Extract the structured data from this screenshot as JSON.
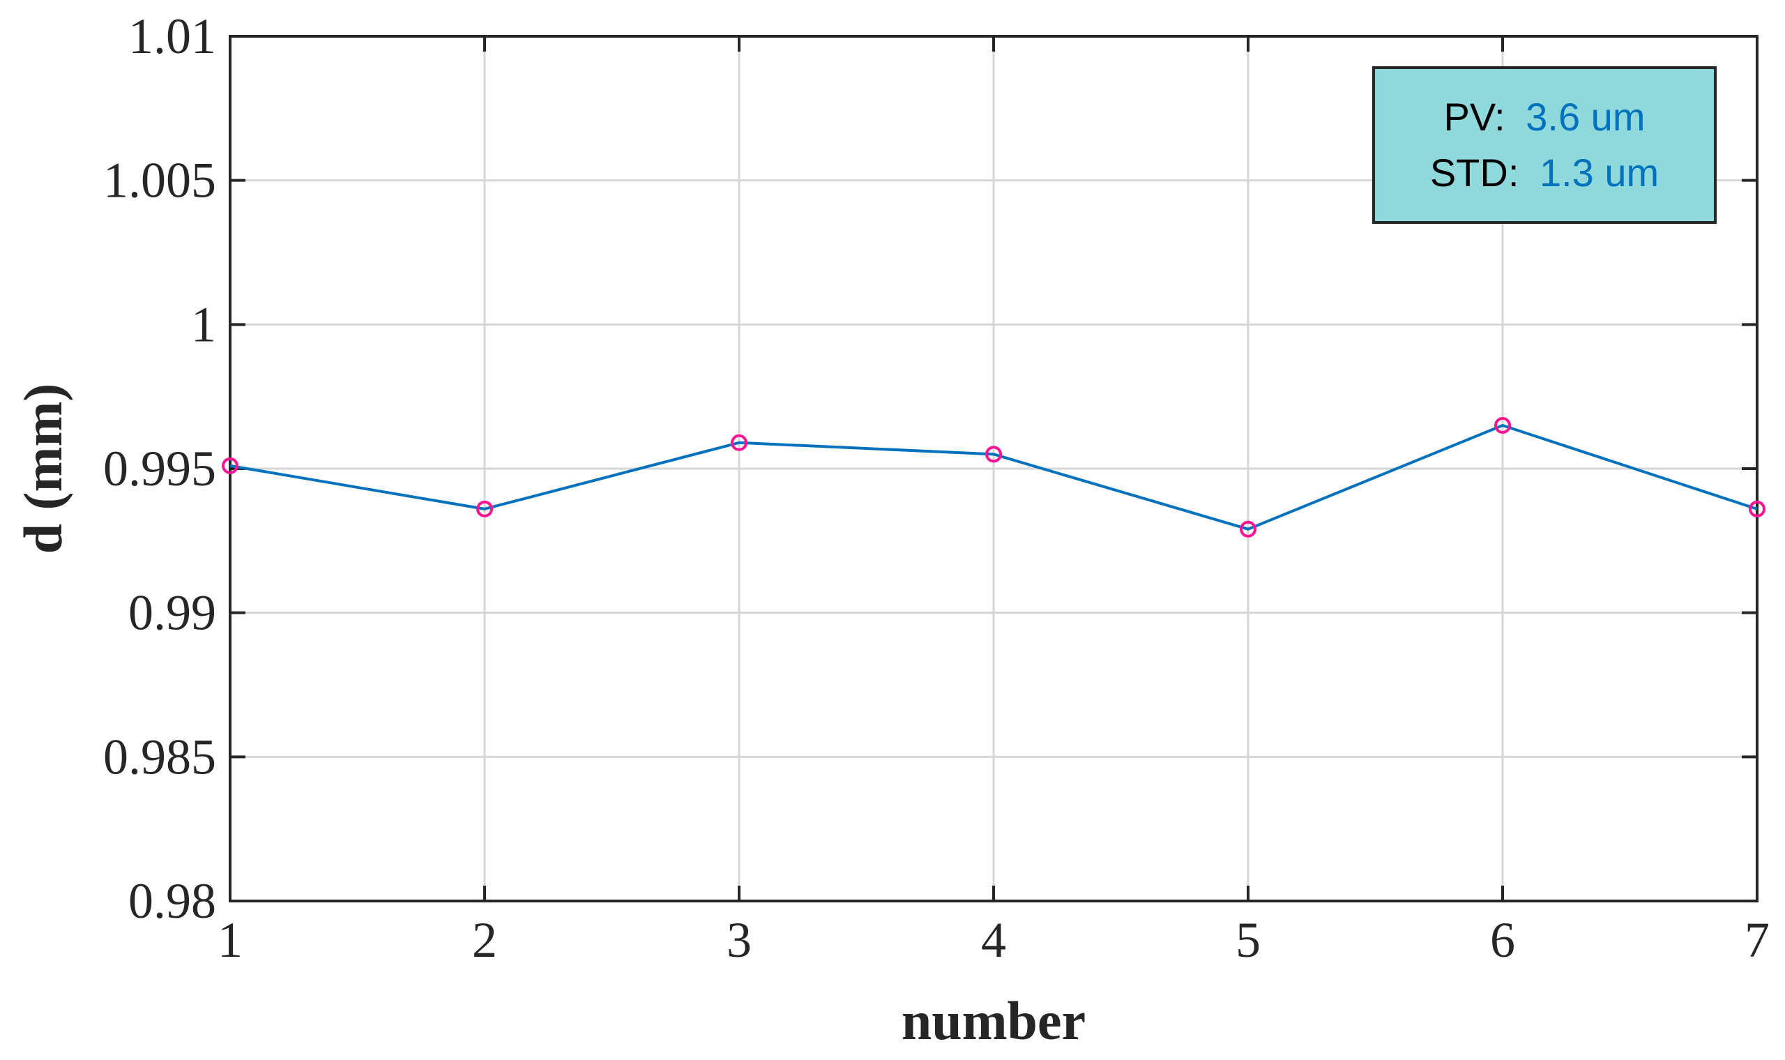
{
  "chart_data": {
    "type": "line",
    "title": "",
    "xlabel": "number",
    "ylabel": "d (mm)",
    "xlim": [
      1,
      7
    ],
    "ylim": [
      0.98,
      1.01
    ],
    "x_ticks": [
      1,
      2,
      3,
      4,
      5,
      6,
      7
    ],
    "x_tick_labels": [
      "1",
      "2",
      "3",
      "4",
      "5",
      "6",
      "7"
    ],
    "y_ticks": [
      0.98,
      0.985,
      0.99,
      0.995,
      1.0,
      1.005,
      1.01
    ],
    "y_tick_labels": [
      "0.98",
      "0.985",
      "0.99",
      "0.995",
      "1",
      "1.005",
      "1.01"
    ],
    "grid": true,
    "legend": "none",
    "series": [
      {
        "x": [
          1,
          2,
          3,
          4,
          5,
          6,
          7
        ],
        "values": [
          0.9951,
          0.9936,
          0.9959,
          0.9955,
          0.9929,
          0.9965,
          0.9936
        ],
        "line_color": "#0072bd",
        "marker": "circle",
        "marker_color": "#ff1493"
      }
    ],
    "annotation": {
      "placement": "top-right",
      "background": "#8fd9dc",
      "lines": [
        {
          "label": "PV:",
          "value": "3.6 um"
        },
        {
          "label": "STD:",
          "value": "1.3 um"
        }
      ],
      "label_color": "#000000",
      "value_color": "#0072bd"
    }
  }
}
